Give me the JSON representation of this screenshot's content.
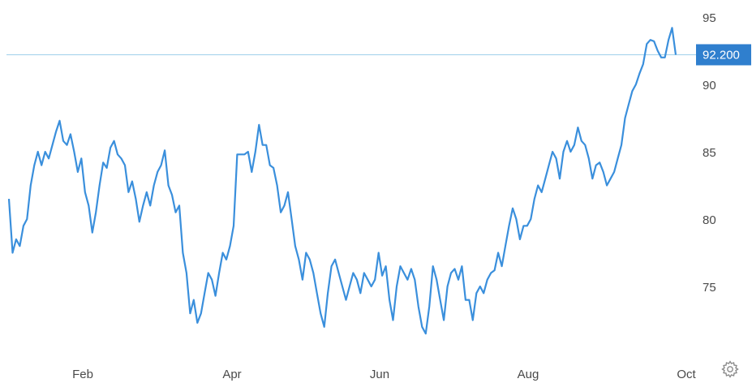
{
  "chart_data": {
    "type": "line",
    "x_labels": [
      "Feb",
      "Apr",
      "Jun",
      "Aug",
      "Oct"
    ],
    "y_ticks": [
      75,
      80,
      85,
      90,
      95
    ],
    "ylim": [
      70,
      96
    ],
    "grid": false,
    "current_value_label": "92.200",
    "current_value": 92.2,
    "series": [
      {
        "color": "#3a8fdc",
        "values": [
          81.5,
          77.5,
          78.5,
          78,
          79.5,
          80,
          82.5,
          84,
          85,
          84,
          85,
          84.5,
          85.5,
          86.5,
          87.3,
          85.8,
          85.5,
          86.3,
          85,
          83.5,
          84.5,
          82,
          81,
          79,
          80.5,
          82.5,
          84.2,
          83.8,
          85.3,
          85.8,
          84.8,
          84.5,
          84,
          82,
          82.8,
          81.5,
          79.8,
          81,
          82,
          81,
          82.5,
          83.5,
          84,
          85.1,
          82.5,
          81.8,
          80.5,
          81,
          77.5,
          76,
          73,
          74,
          72.3,
          73,
          74.5,
          76,
          75.5,
          74.3,
          76,
          77.5,
          77,
          78,
          79.5,
          84.8,
          84.8,
          84.8,
          85,
          83.5,
          85,
          87,
          85.5,
          85.5,
          84,
          83.8,
          82.5,
          80.5,
          81,
          82,
          80,
          78,
          77,
          75.5,
          77.5,
          77,
          76,
          74.5,
          73,
          72,
          74.5,
          76.5,
          77,
          76,
          75,
          74,
          75,
          76,
          75.5,
          74.5,
          76,
          75.5,
          75,
          75.5,
          77.5,
          75.8,
          76.5,
          74,
          72.5,
          75,
          76.5,
          76,
          75.5,
          76.3,
          75.5,
          73.5,
          72,
          71.5,
          73.5,
          76.5,
          75.5,
          74,
          72.5,
          75,
          76,
          76.3,
          75.5,
          76.5,
          74,
          74,
          72.5,
          74.5,
          75,
          74.5,
          75.5,
          76,
          76.2,
          77.5,
          76.5,
          78,
          79.5,
          80.8,
          80,
          78.5,
          79.5,
          79.5,
          80,
          81.5,
          82.5,
          82,
          83,
          84,
          85,
          84.5,
          83,
          85,
          85.8,
          85,
          85.5,
          86.8,
          85.8,
          85.5,
          84.5,
          83,
          84,
          84.2,
          83.5,
          82.5,
          83,
          83.5,
          84.5,
          85.5,
          87.5,
          88.5,
          89.5,
          90,
          90.8,
          91.5,
          93,
          93.3,
          93.2,
          92.5,
          92,
          92,
          93.3,
          94.2,
          92.2
        ]
      }
    ]
  },
  "icons": {
    "settings": "gear-icon"
  }
}
